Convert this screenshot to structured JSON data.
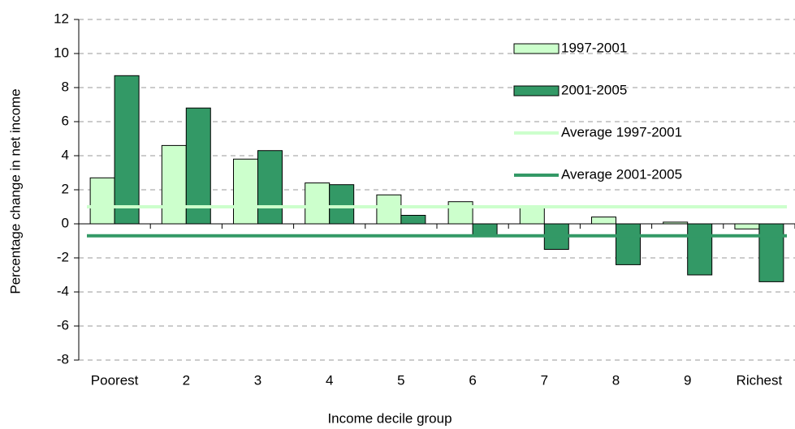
{
  "chart_data": {
    "type": "bar",
    "x_label": "Income decile group",
    "y_label": "Percentage change in net income",
    "categories": [
      "Poorest",
      "2",
      "3",
      "4",
      "5",
      "6",
      "7",
      "8",
      "9",
      "Richest"
    ],
    "series": [
      {
        "name": "1997-2001",
        "color": "#ccffcc",
        "values": [
          2.7,
          4.6,
          3.8,
          2.4,
          1.7,
          1.3,
          1.0,
          0.4,
          0.1,
          -0.3
        ]
      },
      {
        "name": "2001-2005",
        "color": "#339966",
        "values": [
          8.7,
          6.8,
          4.3,
          2.3,
          0.5,
          -0.7,
          -1.5,
          -2.4,
          -3.0,
          -3.4
        ]
      }
    ],
    "averages": [
      {
        "name": "Average 1997-2001",
        "color": "#ccffcc",
        "value": 1.0
      },
      {
        "name": "Average 2001-2005",
        "color": "#339966",
        "value": -0.7
      }
    ],
    "ylim": [
      -8,
      12
    ],
    "yticks": [
      -8,
      -6,
      -4,
      -2,
      0,
      2,
      4,
      6,
      8,
      10,
      12
    ],
    "grid": true,
    "legend": "upper right"
  }
}
